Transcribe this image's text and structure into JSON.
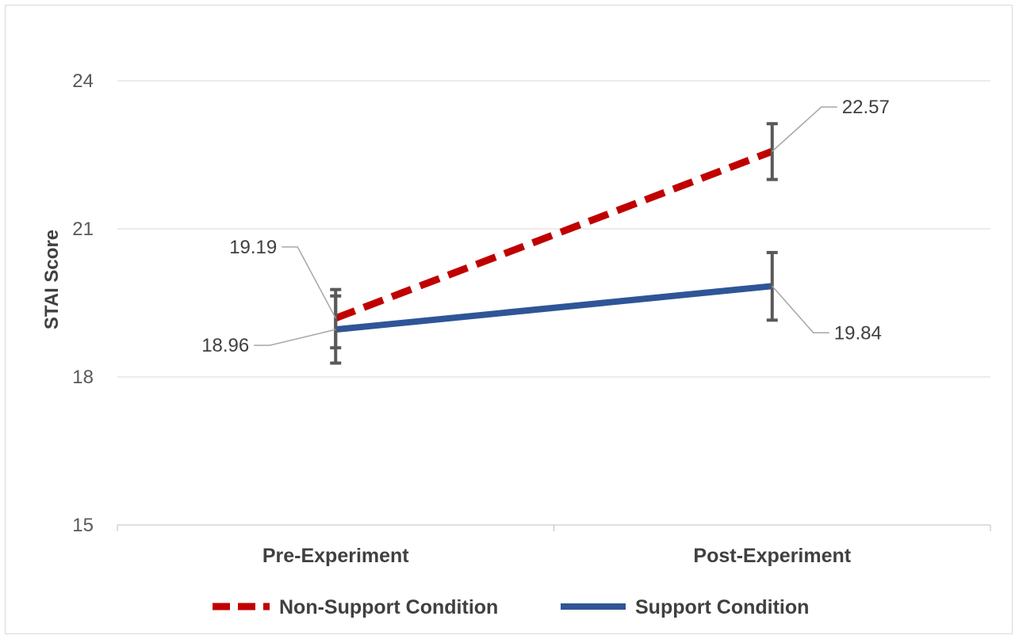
{
  "chart_data": {
    "type": "line",
    "categories": [
      "Pre-Experiment",
      "Post-Experiment"
    ],
    "ylabel": "STAI Score",
    "ylim": [
      15,
      24
    ],
    "yticks": [
      15,
      18,
      21,
      24
    ],
    "grid": true,
    "legend_position": "bottom",
    "series": [
      {
        "name": "Non-Support Condition",
        "values": [
          19.19,
          22.57
        ],
        "error_low": [
          18.59,
          22.0
        ],
        "error_high": [
          19.77,
          23.13
        ],
        "color": "#c00000",
        "style": "dashed"
      },
      {
        "name": "Support Condition",
        "values": [
          18.96,
          19.84
        ],
        "error_low": [
          18.28,
          19.15
        ],
        "error_high": [
          19.64,
          20.52
        ],
        "color": "#2f5597",
        "style": "solid"
      }
    ],
    "data_labels": [
      "19.19",
      "22.57",
      "18.96",
      "19.84"
    ]
  }
}
